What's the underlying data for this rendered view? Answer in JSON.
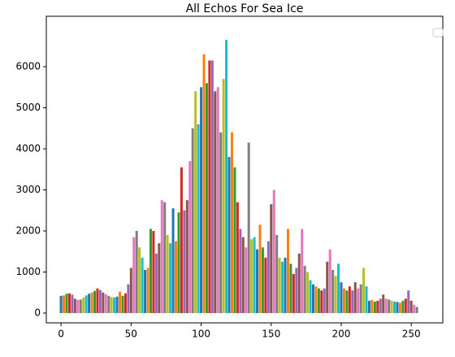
{
  "chart_data": {
    "type": "spikes",
    "title": "All Echos For Sea Ice",
    "x": [
      0,
      2,
      4,
      6,
      8,
      10,
      12,
      14,
      16,
      18,
      20,
      22,
      24,
      26,
      28,
      30,
      32,
      34,
      36,
      38,
      40,
      42,
      44,
      46,
      48,
      50,
      52,
      54,
      56,
      58,
      60,
      62,
      64,
      66,
      68,
      70,
      72,
      74,
      76,
      78,
      80,
      82,
      84,
      86,
      88,
      90,
      92,
      94,
      96,
      98,
      100,
      102,
      104,
      106,
      108,
      110,
      112,
      114,
      116,
      118,
      120,
      122,
      124,
      126,
      128,
      130,
      132,
      134,
      136,
      138,
      140,
      142,
      144,
      146,
      148,
      150,
      152,
      154,
      156,
      158,
      160,
      162,
      164,
      166,
      168,
      170,
      172,
      174,
      176,
      178,
      180,
      182,
      184,
      186,
      188,
      190,
      192,
      194,
      196,
      198,
      200,
      202,
      204,
      206,
      208,
      210,
      212,
      214,
      216,
      218,
      220,
      222,
      224,
      226,
      228,
      230,
      232,
      234,
      236,
      238,
      240,
      242,
      244,
      246,
      248,
      250,
      252,
      254
    ],
    "values": [
      420,
      430,
      470,
      480,
      450,
      350,
      320,
      330,
      380,
      430,
      470,
      500,
      540,
      600,
      560,
      500,
      460,
      420,
      390,
      380,
      400,
      520,
      420,
      480,
      700,
      1100,
      1850,
      2000,
      1600,
      1350,
      1050,
      1100,
      2050,
      2000,
      1450,
      1700,
      2750,
      2700,
      1900,
      1700,
      2550,
      1750,
      2450,
      3550,
      2500,
      2750,
      3700,
      4500,
      5400,
      4600,
      5500,
      6300,
      5600,
      6150,
      6150,
      5400,
      5500,
      4400,
      5700,
      6650,
      3800,
      4400,
      3550,
      2700,
      2050,
      1850,
      1600,
      4150,
      1800,
      1850,
      1550,
      2150,
      1600,
      1350,
      1750,
      2650,
      3000,
      1900,
      1350,
      1250,
      1350,
      2050,
      1200,
      950,
      1100,
      1450,
      2050,
      1150,
      1000,
      800,
      700,
      650,
      600,
      550,
      600,
      1250,
      1550,
      1050,
      900,
      1200,
      750,
      600,
      550,
      650,
      550,
      750,
      600,
      700,
      1100,
      650,
      300,
      320,
      280,
      300,
      350,
      450,
      350,
      330,
      300,
      280,
      270,
      250,
      300,
      350,
      550,
      300,
      200,
      150
    ],
    "colors": [
      "#1f77b4",
      "#ff7f0e",
      "#2ca02c",
      "#d62728",
      "#9467bd",
      "#8c564b",
      "#e377c2",
      "#7f7f7f",
      "#bcbd22",
      "#17becf"
    ],
    "xlim": [
      -10.5,
      272.5
    ],
    "ylim": [
      -238,
      7228
    ],
    "xticks": [
      0,
      50,
      100,
      150,
      200,
      250
    ],
    "yticks": [
      0,
      1000,
      2000,
      3000,
      4000,
      5000,
      6000
    ],
    "legend": "upper right"
  }
}
